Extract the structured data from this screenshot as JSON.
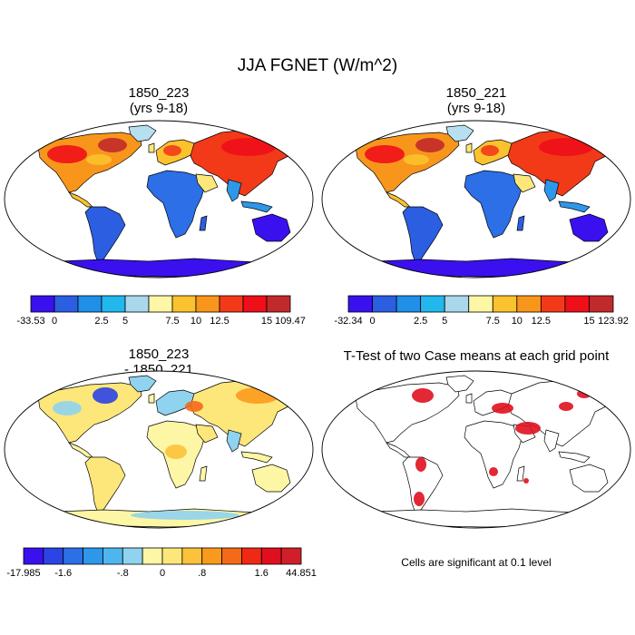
{
  "main_title": "JJA FGNET (W/m^2)",
  "panels": [
    {
      "title_line1": "1850_223",
      "title_line2": "(yrs 9-18)",
      "colorbar": {
        "labels": [
          "-33.53",
          "0",
          "2.5",
          "5",
          "7.5",
          "10",
          "12.5",
          "15",
          "109.47"
        ],
        "colors": [
          "#3b10ee",
          "#2c5ee2",
          "#1f8fe8",
          "#22b8ee",
          "#a9d7ec",
          "#fdf6a5",
          "#fbc22d",
          "#f8961b",
          "#f33a18",
          "#ee0f19",
          "#c22a2a"
        ]
      }
    },
    {
      "title_line1": "1850_221",
      "title_line2": "(yrs 9-18)",
      "colorbar": {
        "labels": [
          "-32.34",
          "0",
          "2.5",
          "5",
          "7.5",
          "10",
          "12.5",
          "15",
          "123.92"
        ],
        "colors": [
          "#3b10ee",
          "#2c5ee2",
          "#1f8fe8",
          "#22b8ee",
          "#a9d7ec",
          "#fdf6a5",
          "#fbc22d",
          "#f8961b",
          "#f33a18",
          "#ee0f19",
          "#c22a2a"
        ]
      }
    },
    {
      "title_line1": "1850_223",
      "title_line2": "- 1850_221",
      "colorbar": {
        "labels": [
          "-17.985",
          "-1.6",
          "-.8",
          "0",
          ".8",
          "1.6",
          "44.851"
        ],
        "colors": [
          "#3b10ee",
          "#2a44e6",
          "#2c6fe6",
          "#2f97ea",
          "#4eb6ef",
          "#8fd3ef",
          "#fdf6a5",
          "#fde77a",
          "#fcc23a",
          "#f99a1e",
          "#f46a19",
          "#ee2a17",
          "#e00f1e",
          "#d01e2a"
        ]
      }
    },
    {
      "title_line1": "T-Test of two Case means at each grid point",
      "note": "Cells are significant at 0.1 level"
    }
  ]
}
